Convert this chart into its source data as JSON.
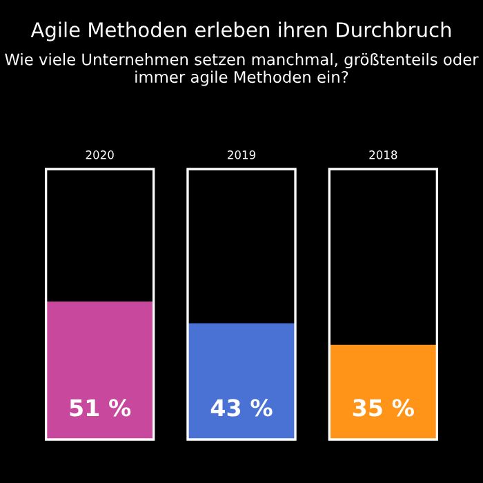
{
  "chart_data": {
    "type": "bar",
    "title": "Agile Methoden erleben ihren Durchbruch",
    "subtitle": "Wie viele Unternehmen setzen manchmal, größtenteils oder immer agile Methoden ein?",
    "categories": [
      "2020",
      "2019",
      "2018"
    ],
    "values": [
      51,
      43,
      35
    ],
    "colors": [
      "#c8489e",
      "#4a72d4",
      "#ff9418"
    ],
    "value_labels": [
      "51 %",
      "43 %",
      "35 %"
    ],
    "ylim": [
      0,
      100
    ],
    "tick_labels": "x"
  }
}
